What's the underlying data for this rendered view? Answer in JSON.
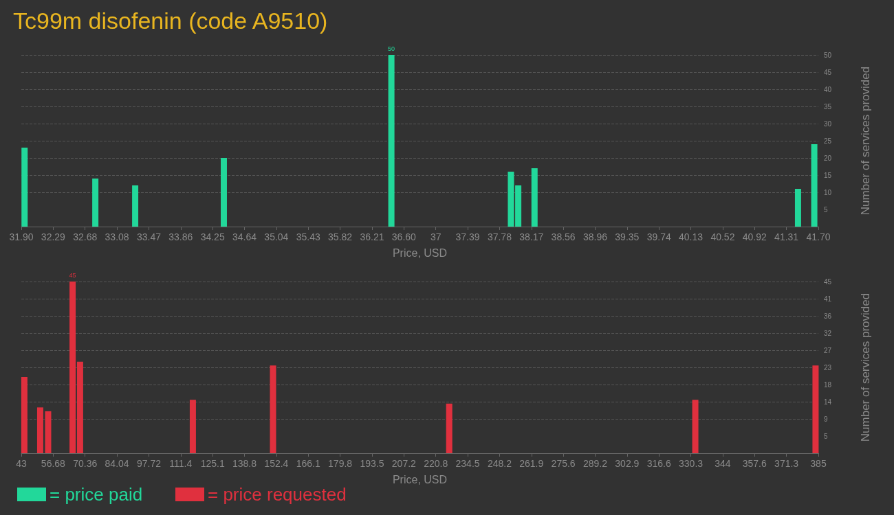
{
  "chart_data": [
    {
      "type": "bar",
      "title": "Tc99m disofenin (code A9510)",
      "xlabel": "Price, USD",
      "ylabel": "Number of services provided",
      "x": [
        31.94,
        32.81,
        33.3,
        34.39,
        36.45,
        37.92,
        38.01,
        38.21,
        41.45,
        41.65
      ],
      "series": [
        {
          "name": "= price paid",
          "color": "#22d89a",
          "values": [
            23,
            14,
            12,
            20,
            50,
            16,
            12,
            17,
            11,
            24
          ],
          "value_labels": [
            null,
            null,
            null,
            null,
            "50",
            null,
            null,
            null,
            null,
            null
          ]
        }
      ],
      "xlim": [
        31.9,
        41.7
      ],
      "xticks": [
        {
          "value": 31.9,
          "label": "31.90"
        },
        {
          "value": 32.292,
          "label": "32.29"
        },
        {
          "value": 32.684,
          "label": "32.68"
        },
        {
          "value": 33.076,
          "label": "33.08"
        },
        {
          "value": 33.468,
          "label": "33.47"
        },
        {
          "value": 33.86,
          "label": "33.86"
        },
        {
          "value": 34.252,
          "label": "34.25"
        },
        {
          "value": 34.644,
          "label": "34.64"
        },
        {
          "value": 35.036,
          "label": "35.04"
        },
        {
          "value": 35.428,
          "label": "35.43"
        },
        {
          "value": 35.82,
          "label": "35.82"
        },
        {
          "value": 36.212,
          "label": "36.21"
        },
        {
          "value": 36.604,
          "label": "36.60"
        },
        {
          "value": 36.996,
          "label": "37"
        },
        {
          "value": 37.388,
          "label": "37.39"
        },
        {
          "value": 37.78,
          "label": "37.78"
        },
        {
          "value": 38.172,
          "label": "38.17"
        },
        {
          "value": 38.564,
          "label": "38.56"
        },
        {
          "value": 38.956,
          "label": "38.96"
        },
        {
          "value": 39.348,
          "label": "39.35"
        },
        {
          "value": 39.74,
          "label": "39.74"
        },
        {
          "value": 40.132,
          "label": "40.13"
        },
        {
          "value": 40.524,
          "label": "40.52"
        },
        {
          "value": 40.916,
          "label": "40.92"
        },
        {
          "value": 41.308,
          "label": "41.31"
        },
        {
          "value": 41.7,
          "label": "41.70"
        }
      ],
      "ylim": [
        0,
        50
      ],
      "yticks": [
        5,
        10,
        15,
        20,
        25,
        30,
        35,
        40,
        45,
        50
      ],
      "grid": "y",
      "legend": "bottom left"
    },
    {
      "type": "bar",
      "xlabel": "Price, USD",
      "ylabel": "Number of services provided",
      "x": [
        44.3,
        51.1,
        54.5,
        65.0,
        68.2,
        116.6,
        151.0,
        226.6,
        332.2,
        383.8
      ],
      "series": [
        {
          "name": "= price requested",
          "color": "#e0303e",
          "values": [
            20,
            12,
            11,
            45,
            24,
            14,
            23,
            13,
            14,
            23
          ],
          "value_labels": [
            null,
            null,
            null,
            "45",
            null,
            null,
            null,
            null,
            null,
            null
          ]
        }
      ],
      "xlim": [
        43,
        385
      ],
      "xticks": [
        43,
        56.68,
        70.36,
        84.04,
        97.72,
        {
          "value": 111.4,
          "label": "111.4"
        },
        {
          "value": 125.08,
          "label": "125.1"
        },
        {
          "value": 138.76,
          "label": "138.8"
        },
        {
          "value": 152.44,
          "label": "152.4"
        },
        {
          "value": 166.12,
          "label": "166.1"
        },
        {
          "value": 179.8,
          "label": "179.8"
        },
        {
          "value": 193.48,
          "label": "193.5"
        },
        {
          "value": 207.16,
          "label": "207.2"
        },
        {
          "value": 220.84,
          "label": "220.8"
        },
        {
          "value": 234.52,
          "label": "234.5"
        },
        {
          "value": 248.2,
          "label": "248.2"
        },
        {
          "value": 261.88,
          "label": "261.9"
        },
        {
          "value": 275.56,
          "label": "275.6"
        },
        {
          "value": 289.24,
          "label": "289.2"
        },
        {
          "value": 302.92,
          "label": "302.9"
        },
        {
          "value": 316.6,
          "label": "316.6"
        },
        {
          "value": 330.28,
          "label": "330.3"
        },
        {
          "value": 343.96,
          "label": "344"
        },
        {
          "value": 357.64,
          "label": "357.6"
        },
        {
          "value": 371.32,
          "label": "371.3"
        },
        385
      ],
      "ylim": [
        0,
        45
      ],
      "yticks": [
        {
          "value": 4.5,
          "label": "5"
        },
        9,
        {
          "value": 13.5,
          "label": "14"
        },
        18,
        {
          "value": 22.5,
          "label": "23"
        },
        27,
        {
          "value": 31.5,
          "label": "32"
        },
        36,
        {
          "value": 40.5,
          "label": "41"
        },
        45
      ],
      "grid": "y",
      "legend": "bottom left"
    }
  ]
}
